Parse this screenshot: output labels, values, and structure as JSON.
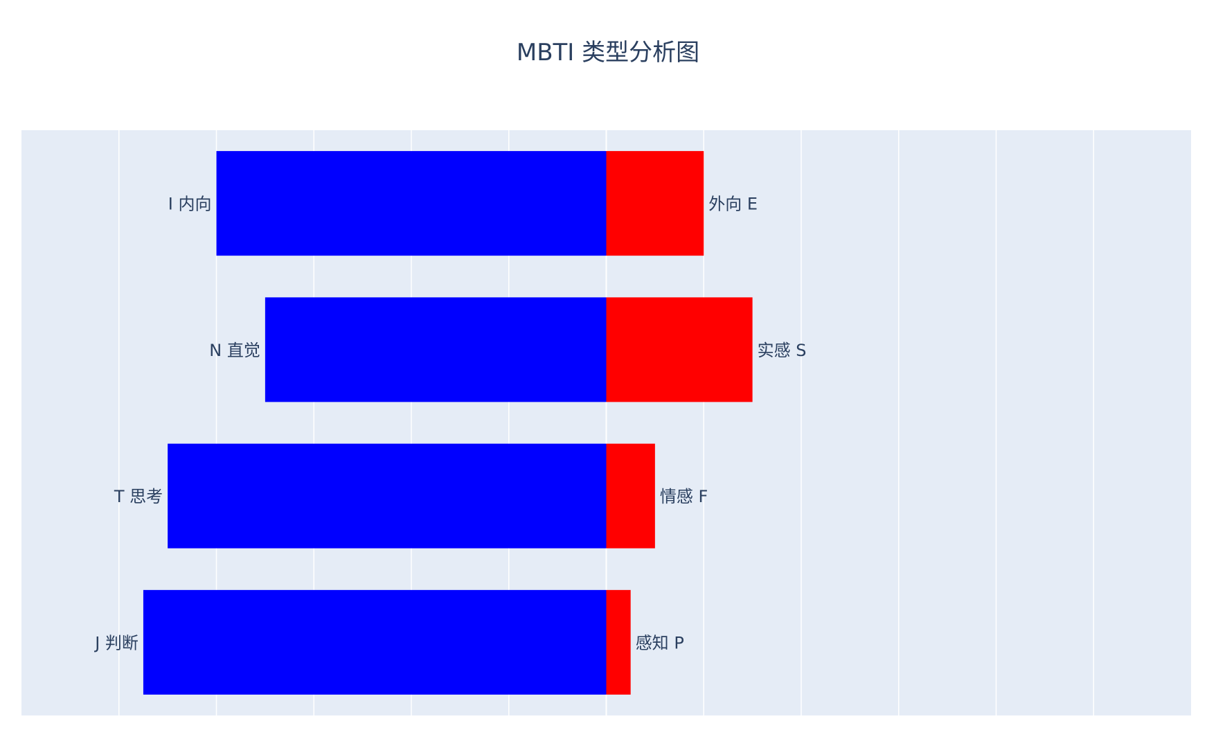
{
  "chart_data": {
    "type": "bar",
    "orientation": "horizontal",
    "barmode": "relative",
    "title": "MBTI 类型分析图",
    "xlabel": "",
    "ylabel": "",
    "xlim": [
      -6,
      6
    ],
    "grid": true,
    "show_tick_labels": false,
    "categories": [
      "I 内向 / 外向 E",
      "N 直觉 / 实感 S",
      "T 思考 / 情感 F",
      "J 判断 / 感知 P"
    ],
    "series": [
      {
        "color": "#0000ff",
        "values": [
          -4.0,
          -3.5,
          -4.5,
          -4.75
        ],
        "labels": [
          "I 内向",
          "N 直觉",
          "T 思考",
          "J 判断"
        ],
        "label_side": "left"
      },
      {
        "color": "#ff0000",
        "values": [
          1.0,
          1.5,
          0.5,
          0.25
        ],
        "labels": [
          "外向 E",
          "实感 S",
          "情感 F",
          "感知 P"
        ],
        "label_side": "right"
      }
    ],
    "plot_background": "#e5ecf6",
    "grid_color": "#ffffff"
  }
}
